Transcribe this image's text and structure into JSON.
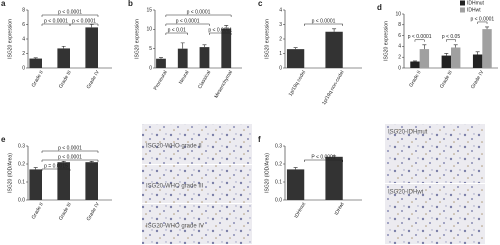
{
  "chart_data": [
    {
      "type": "bar",
      "label": "a",
      "ylabel": "ISG20 expression",
      "categories": [
        "Grade II",
        "Grade III",
        "Grade IV"
      ],
      "series": [
        {
          "color": "#333333",
          "values": [
            1.3,
            2.7,
            5.6
          ],
          "errors": [
            0.1,
            0.3,
            0.4
          ]
        }
      ],
      "ylim": [
        0,
        8
      ],
      "yticks": [
        0,
        2,
        4,
        6,
        8
      ],
      "annotations": [
        "p < 0.0001",
        "p < 0.0001",
        "p < 0.0001"
      ]
    },
    {
      "type": "bar",
      "label": "b",
      "ylabel": "ISG20 expression",
      "categories": [
        "Proneural",
        "Neural",
        "Classical",
        "Mesenchymal"
      ],
      "series": [
        {
          "color": "#333333",
          "values": [
            2.4,
            5.0,
            5.4,
            10.2
          ],
          "errors": [
            0.3,
            1.5,
            0.6,
            0.8
          ]
        }
      ],
      "ylim": [
        0,
        15
      ],
      "yticks": [
        0,
        5,
        10,
        15
      ],
      "annotations": [
        "p < 0.0001",
        "p < 0.0001",
        "p < 0.01",
        "p < 0.0001"
      ]
    },
    {
      "type": "bar",
      "label": "c",
      "ylabel": "ISG20 expression",
      "categories": [
        "1p/19q codel",
        "1p/19q non-codel"
      ],
      "series": [
        {
          "color": "#333333",
          "values": [
            1.3,
            2.5
          ],
          "errors": [
            0.1,
            0.2
          ]
        }
      ],
      "ylim": [
        0,
        4
      ],
      "yticks": [
        0,
        1,
        2,
        3,
        4
      ],
      "annotations": [
        "p < 0.0001"
      ]
    },
    {
      "type": "bar",
      "label": "d",
      "ylabel": "ISG20 expression",
      "categories": [
        "Grade II",
        "Grade III",
        "Grade IV"
      ],
      "series": [
        {
          "name": "IDHmut",
          "color": "#222222",
          "values": [
            1.2,
            2.3,
            2.5
          ],
          "errors": [
            0.1,
            0.4,
            0.5
          ]
        },
        {
          "name": "IDHwt",
          "color": "#a0a0a0",
          "values": [
            3.5,
            3.8,
            7.2
          ],
          "errors": [
            0.8,
            0.5,
            0.4
          ]
        }
      ],
      "ylim": [
        0,
        10
      ],
      "yticks": [
        0,
        2,
        4,
        6,
        8,
        10
      ],
      "annotations": [
        "p < 0.0001",
        "p < 0.05",
        "p < 0.0001"
      ]
    },
    {
      "type": "bar",
      "label": "e",
      "ylabel": "ISG20 (IOD/Area)",
      "categories": [
        "Grade II",
        "Grade III",
        "Grade IV"
      ],
      "series": [
        {
          "color": "#333333",
          "values": [
            0.17,
            0.21,
            0.21
          ],
          "errors": [
            0.01,
            0.005,
            0.005
          ]
        }
      ],
      "ylim": [
        0,
        0.3
      ],
      "yticks": [
        {
          "value": 0,
          "label": "0.0"
        },
        0.1,
        0.2,
        0.3
      ],
      "annotations": [
        "p < 0.0001",
        "p < 0.0001",
        "p = 0.0015"
      ]
    },
    {
      "type": "bar",
      "label": "f",
      "ylabel": "ISG20 (IOD/Area)",
      "categories": [
        "IDHmut",
        "IDHwt"
      ],
      "series": [
        {
          "color": "#333333",
          "values": [
            0.17,
            0.24
          ],
          "errors": [
            0.01,
            0.005
          ]
        }
      ],
      "ylim": [
        0,
        0.3
      ],
      "yticks": [
        {
          "value": 0,
          "label": "0.0"
        },
        0.1,
        0.2,
        0.3
      ],
      "annotations": [
        "P < 0.0001"
      ]
    }
  ],
  "images": [
    {
      "captions": [
        "ISG20-WHO grade II",
        "ISG20-WHO grade III",
        "ISG20-WHO grade IV"
      ]
    },
    {
      "captions": [
        "ISG20-IDHmut",
        "ISG20-IDHwt"
      ]
    }
  ]
}
